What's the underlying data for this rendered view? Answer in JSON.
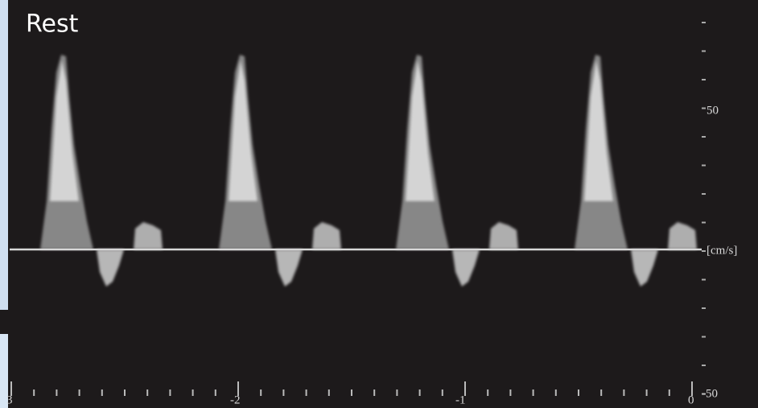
{
  "panel": {
    "title": "Rest",
    "right_axis": {
      "top_label": "50",
      "unit_label": "[cm/s]",
      "bottom_label": "-50"
    },
    "bottom_axis": {
      "labels": [
        "3",
        "-2",
        "-1",
        "0"
      ]
    }
  }
}
